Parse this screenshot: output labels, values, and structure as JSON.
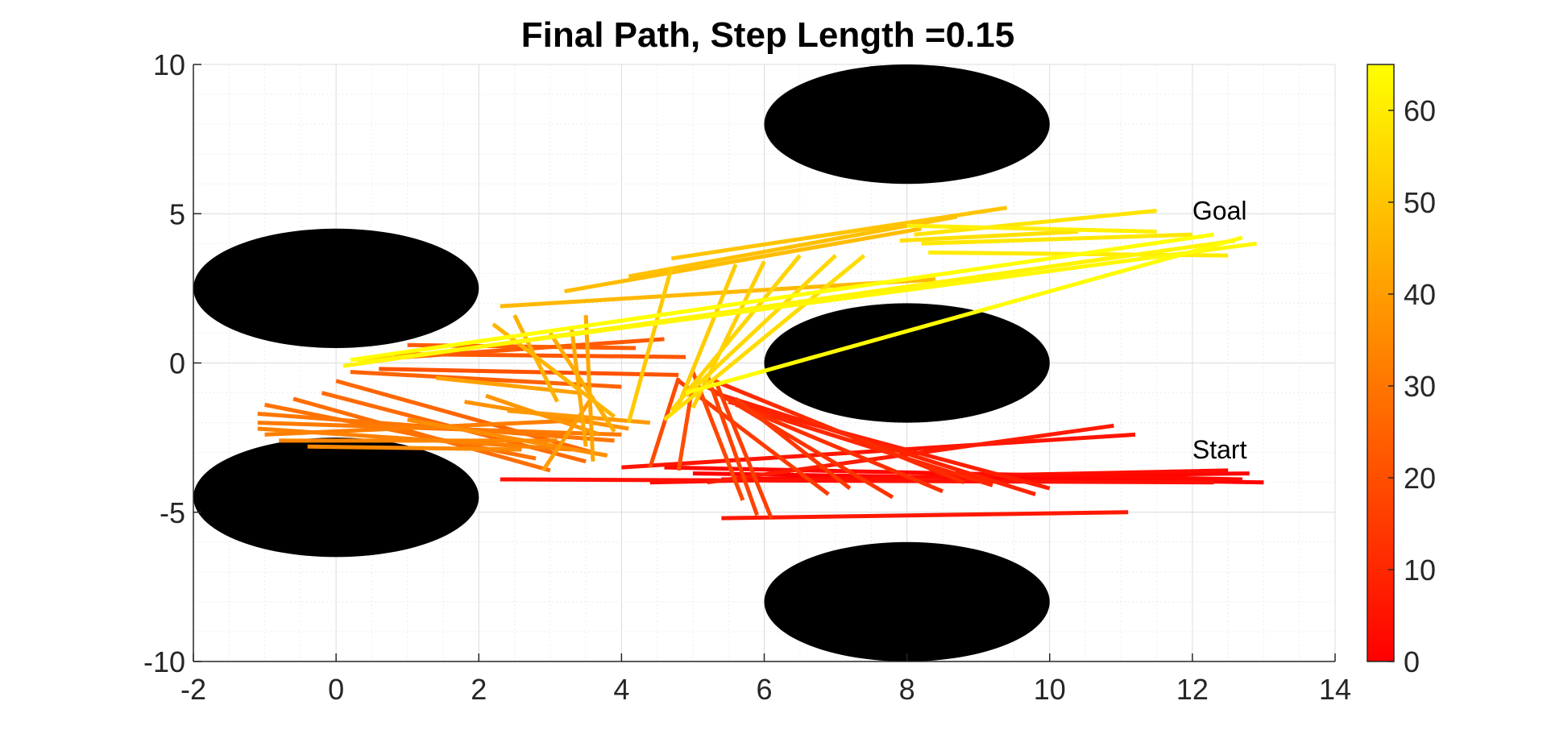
{
  "chart_data": {
    "type": "line",
    "title": "Final Path, Step Length =0.15",
    "xlabel": "",
    "ylabel": "",
    "xlim": [
      -2,
      14
    ],
    "ylim": [
      -10,
      10
    ],
    "x_ticks": [
      "-2",
      "0",
      "2",
      "4",
      "6",
      "8",
      "10",
      "12",
      "14"
    ],
    "y_ticks": [
      "-10",
      "-5",
      "0",
      "5",
      "10"
    ],
    "grid": true,
    "minor_grid": true,
    "obstacles": [
      {
        "cx": 0,
        "cy": 2.5,
        "rx": 2,
        "ry": 2
      },
      {
        "cx": 0,
        "cy": -4.5,
        "rx": 2,
        "ry": 2
      },
      {
        "cx": 8,
        "cy": 8,
        "rx": 2,
        "ry": 2
      },
      {
        "cx": 8,
        "cy": 0,
        "rx": 2,
        "ry": 2
      },
      {
        "cx": 8,
        "cy": -8,
        "rx": 2,
        "ry": 2
      }
    ],
    "obstacle_color": "#000000",
    "annotations": [
      {
        "text": "Goal",
        "x": 12,
        "y": 4.8
      },
      {
        "text": "Start",
        "x": 12,
        "y": -3.2
      }
    ],
    "colorbar": {
      "colormap": "autumn",
      "range": [
        0,
        65
      ],
      "ticks": [
        "0",
        "10",
        "20",
        "30",
        "40",
        "50",
        "60"
      ],
      "color_low": "#ff0000",
      "color_high": "#ffff00"
    },
    "segments": [
      {
        "i": 0,
        "x1": 13.0,
        "y1": -4.0,
        "x2": 5.0,
        "y2": -3.7
      },
      {
        "i": 1,
        "x1": 12.8,
        "y1": -3.7,
        "x2": 5.4,
        "y2": -3.9
      },
      {
        "i": 2,
        "x1": 12.7,
        "y1": -3.9,
        "x2": 4.6,
        "y2": -3.5
      },
      {
        "i": 3,
        "x1": 12.5,
        "y1": -3.6,
        "x2": 4.4,
        "y2": -4.0
      },
      {
        "i": 4,
        "x1": 12.3,
        "y1": -4.0,
        "x2": 2.3,
        "y2": -3.9
      },
      {
        "i": 5,
        "x1": 11.2,
        "y1": -2.4,
        "x2": 4.0,
        "y2": -3.5
      },
      {
        "i": 6,
        "x1": 11.1,
        "y1": -5.0,
        "x2": 5.4,
        "y2": -5.2
      },
      {
        "i": 7,
        "x1": 10.9,
        "y1": -2.1,
        "x2": 5.2,
        "y2": -4.0
      },
      {
        "i": 8,
        "x1": 10.0,
        "y1": -4.2,
        "x2": 5.5,
        "y2": -1.3
      },
      {
        "i": 9,
        "x1": 9.8,
        "y1": -4.4,
        "x2": 5.3,
        "y2": -1.0
      },
      {
        "i": 10,
        "x1": 9.2,
        "y1": -4.1,
        "x2": 5.6,
        "y2": -1.4
      },
      {
        "i": 11,
        "x1": 8.8,
        "y1": -4.0,
        "x2": 5.3,
        "y2": -0.6
      },
      {
        "i": 12,
        "x1": 8.5,
        "y1": -4.3,
        "x2": 5.8,
        "y2": -1.6
      },
      {
        "i": 13,
        "x1": 7.8,
        "y1": -4.5,
        "x2": 5.2,
        "y2": -0.8
      },
      {
        "i": 14,
        "x1": 7.2,
        "y1": -4.2,
        "x2": 5.6,
        "y2": -1.2
      },
      {
        "i": 15,
        "x1": 6.9,
        "y1": -4.4,
        "x2": 4.8,
        "y2": -0.6
      },
      {
        "i": 16,
        "x1": 6.1,
        "y1": -5.2,
        "x2": 5.3,
        "y2": -0.5
      },
      {
        "i": 17,
        "x1": 5.9,
        "y1": -5.1,
        "x2": 5.2,
        "y2": -0.4
      },
      {
        "i": 18,
        "x1": 5.7,
        "y1": -4.6,
        "x2": 5.0,
        "y2": -0.3
      },
      {
        "i": 19,
        "x1": 4.4,
        "y1": -3.5,
        "x2": 4.8,
        "y2": -0.5
      },
      {
        "i": 20,
        "x1": 4.8,
        "y1": -3.6,
        "x2": 5.0,
        "y2": -0.7
      },
      {
        "i": 21,
        "x1": 4.8,
        "y1": -0.4,
        "x2": 0.6,
        "y2": -0.2
      },
      {
        "i": 22,
        "x1": 4.9,
        "y1": 0.2,
        "x2": 0.8,
        "y2": 0.3
      },
      {
        "i": 23,
        "x1": 4.6,
        "y1": 0.8,
        "x2": 0.4,
        "y2": 0.1
      },
      {
        "i": 24,
        "x1": 4.2,
        "y1": 0.5,
        "x2": 1.0,
        "y2": 0.6
      },
      {
        "i": 25,
        "x1": 4.0,
        "y1": -0.8,
        "x2": 0.2,
        "y2": -0.3
      },
      {
        "i": 26,
        "x1": 3.6,
        "y1": -3.0,
        "x2": 0.0,
        "y2": -0.6
      },
      {
        "i": 27,
        "x1": 3.5,
        "y1": -3.3,
        "x2": -0.2,
        "y2": -1.0
      },
      {
        "i": 28,
        "x1": 3.0,
        "y1": -3.6,
        "x2": -0.6,
        "y2": -1.2
      },
      {
        "i": 29,
        "x1": 2.8,
        "y1": -3.2,
        "x2": -1.0,
        "y2": -1.4
      },
      {
        "i": 30,
        "x1": 3.9,
        "y1": -2.6,
        "x2": -1.1,
        "y2": -1.7
      },
      {
        "i": 31,
        "x1": 4.0,
        "y1": -2.4,
        "x2": -1.1,
        "y2": -2.0
      },
      {
        "i": 32,
        "x1": 3.6,
        "y1": -1.9,
        "x2": -1.0,
        "y2": -2.4
      },
      {
        "i": 33,
        "x1": 3.3,
        "y1": -2.9,
        "x2": -1.1,
        "y2": -2.2
      },
      {
        "i": 34,
        "x1": 3.1,
        "y1": -2.6,
        "x2": -0.8,
        "y2": -2.6
      },
      {
        "i": 35,
        "x1": 2.6,
        "y1": -2.9,
        "x2": -0.4,
        "y2": -2.8
      },
      {
        "i": 36,
        "x1": 3.8,
        "y1": -3.1,
        "x2": 1.0,
        "y2": -1.9
      },
      {
        "i": 37,
        "x1": 4.1,
        "y1": -2.2,
        "x2": 1.8,
        "y2": -1.3
      },
      {
        "i": 38,
        "x1": 3.7,
        "y1": -2.4,
        "x2": 2.1,
        "y2": -1.1
      },
      {
        "i": 39,
        "x1": 4.4,
        "y1": -2.0,
        "x2": 2.4,
        "y2": -1.6
      },
      {
        "i": 40,
        "x1": 3.6,
        "y1": -1.1,
        "x2": 2.9,
        "y2": -3.6
      },
      {
        "i": 41,
        "x1": 3.4,
        "y1": -1.0,
        "x2": 1.4,
        "y2": -0.5
      },
      {
        "i": 42,
        "x1": 3.5,
        "y1": 1.6,
        "x2": 3.6,
        "y2": -3.3
      },
      {
        "i": 43,
        "x1": 3.3,
        "y1": 1.2,
        "x2": 3.5,
        "y2": -2.8
      },
      {
        "i": 44,
        "x1": 3.0,
        "y1": 1.0,
        "x2": 3.9,
        "y2": -2.3
      },
      {
        "i": 45,
        "x1": 2.5,
        "y1": 1.6,
        "x2": 3.1,
        "y2": -1.3
      },
      {
        "i": 46,
        "x1": 2.2,
        "y1": 1.3,
        "x2": 3.9,
        "y2": -1.8
      },
      {
        "i": 47,
        "x1": 2.3,
        "y1": 1.9,
        "x2": 8.4,
        "y2": 2.8
      },
      {
        "i": 48,
        "x1": 3.2,
        "y1": 2.4,
        "x2": 8.2,
        "y2": 4.5
      },
      {
        "i": 49,
        "x1": 4.1,
        "y1": 2.9,
        "x2": 8.7,
        "y2": 4.9
      },
      {
        "i": 50,
        "x1": 4.7,
        "y1": 3.5,
        "x2": 9.4,
        "y2": 5.2
      },
      {
        "i": 51,
        "x1": 4.7,
        "y1": 3.2,
        "x2": 4.1,
        "y2": -2.0
      },
      {
        "i": 52,
        "x1": 5.6,
        "y1": 3.3,
        "x2": 4.8,
        "y2": -1.4
      },
      {
        "i": 53,
        "x1": 6.0,
        "y1": 3.4,
        "x2": 5.0,
        "y2": -1.5
      },
      {
        "i": 54,
        "x1": 6.5,
        "y1": 3.6,
        "x2": 4.7,
        "y2": -1.6
      },
      {
        "i": 55,
        "x1": 7.0,
        "y1": 3.6,
        "x2": 4.9,
        "y2": -1.1
      },
      {
        "i": 56,
        "x1": 7.4,
        "y1": 3.6,
        "x2": 4.6,
        "y2": -1.9
      },
      {
        "i": 57,
        "x1": 7.9,
        "y1": 4.1,
        "x2": 10.4,
        "y2": 4.4
      },
      {
        "i": 58,
        "x1": 8.1,
        "y1": 4.3,
        "x2": 11.5,
        "y2": 5.1
      },
      {
        "i": 59,
        "x1": 8.2,
        "y1": 4.0,
        "x2": 12.0,
        "y2": 4.3
      },
      {
        "i": 60,
        "x1": 8.3,
        "y1": 3.7,
        "x2": 12.5,
        "y2": 3.6
      },
      {
        "i": 61,
        "x1": 8.0,
        "y1": 4.6,
        "x2": 11.5,
        "y2": 4.4
      },
      {
        "i": 62,
        "x1": 12.6,
        "y1": 4.1,
        "x2": 0.1,
        "y2": -0.1
      },
      {
        "i": 63,
        "x1": 12.9,
        "y1": 4.0,
        "x2": 0.3,
        "y2": 0.0
      },
      {
        "i": 64,
        "x1": 12.7,
        "y1": 4.2,
        "x2": 4.9,
        "y2": -1.0
      },
      {
        "i": 65,
        "x1": 12.3,
        "y1": 4.3,
        "x2": 0.2,
        "y2": 0.1
      }
    ]
  }
}
